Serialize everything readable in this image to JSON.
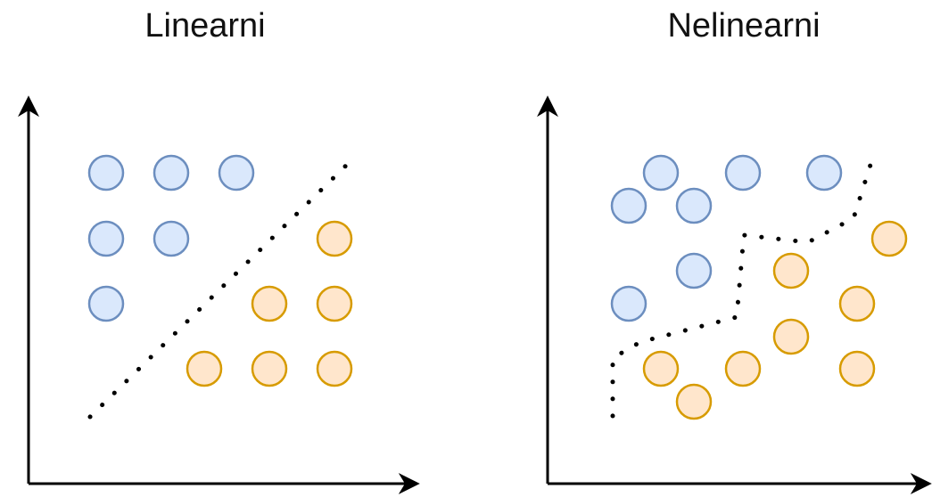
{
  "panels": {
    "left": {
      "title": "Linearni"
    },
    "right": {
      "title": "Nelinearni"
    }
  },
  "colors": {
    "blue_fill": "#dae8fc",
    "blue_stroke": "#6c8ebf",
    "orange_fill": "#ffe6cc",
    "orange_stroke": "#d79b00",
    "axis": "#000000",
    "boundary": "#000000"
  }
}
